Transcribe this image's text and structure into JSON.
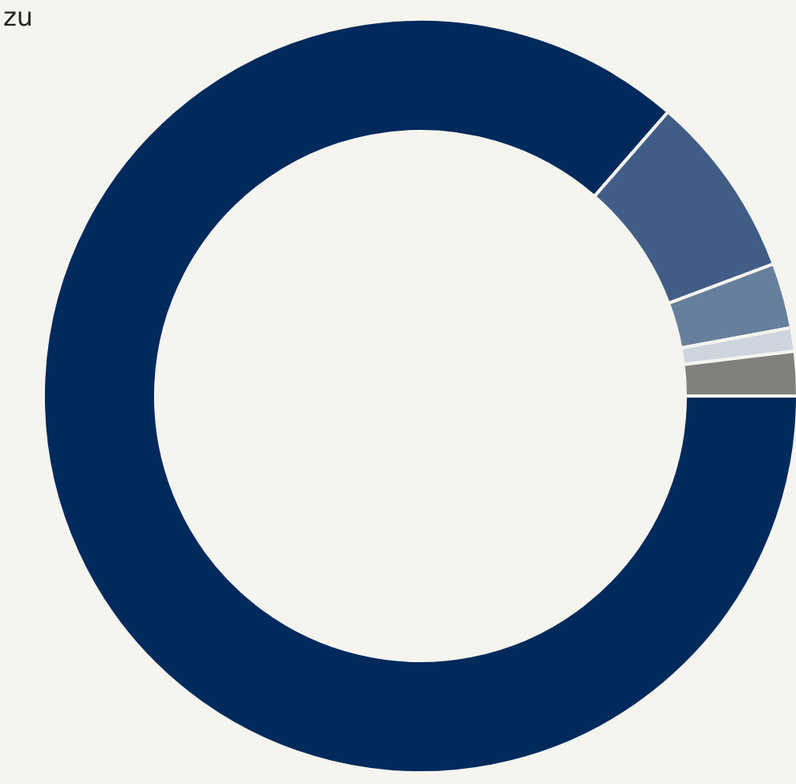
{
  "chart_data": {
    "type": "donut",
    "title": "zu",
    "categories": [
      null,
      null,
      null,
      null,
      null
    ],
    "values": [
      86.4,
      7.9,
      2.8,
      1.0,
      1.9
    ],
    "colors": [
      "#002a5c",
      "#415d86",
      "#667f9d",
      "#cdd6df",
      "#80817c"
    ]
  }
}
